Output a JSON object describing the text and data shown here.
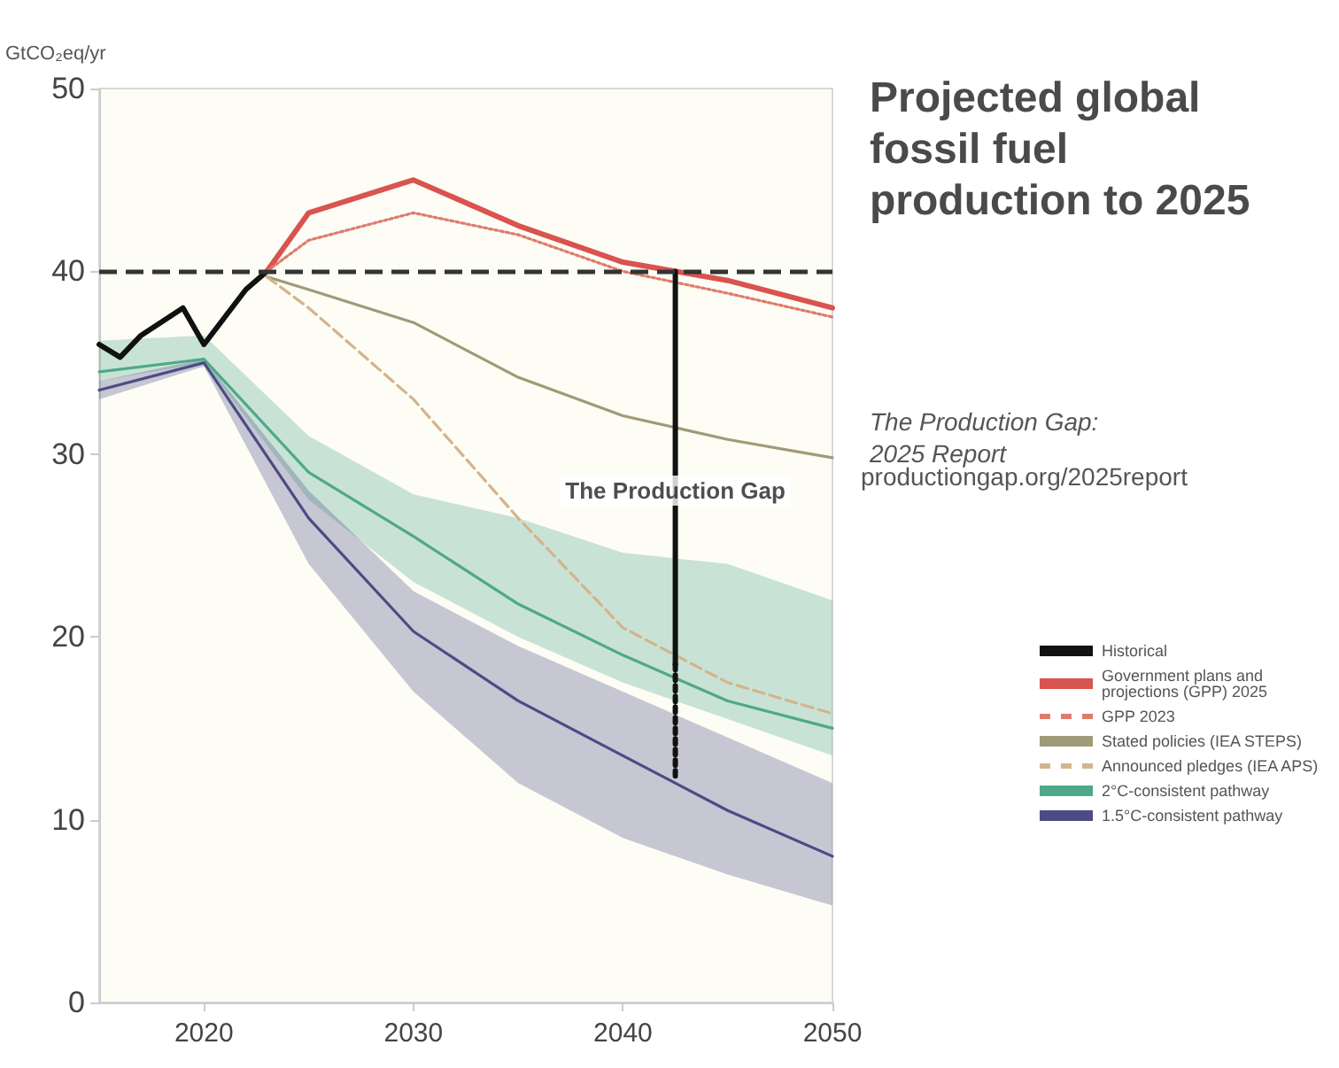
{
  "chart_data": {
    "type": "line",
    "title": "Projected global fossil fuel production to 2025",
    "subtitle": "The Production Gap: 2025 Report",
    "ylabel": "GtCO₂eq/yr",
    "annotations": [
      "productiongap.org/2025report",
      {
        "text": "The Production Gap",
        "x": 2042.5,
        "y": 28
      }
    ],
    "xlim": [
      2015,
      2050
    ],
    "xticks": [
      2020,
      2030,
      2040,
      2050
    ],
    "ylim": [
      0,
      50
    ],
    "yticks": [
      0,
      10,
      20,
      30,
      40,
      50
    ],
    "grid": false,
    "legend": "right",
    "marker": "none",
    "ref_lines": [
      {
        "axis": "y",
        "value": 40,
        "color": "#333333",
        "line_style": "dashed"
      }
    ],
    "series": [
      {
        "name": "Historical",
        "color": "#111111",
        "x": [
          2015,
          2016,
          2017,
          2019,
          2020,
          2021,
          2022,
          2023
        ],
        "values": [
          36,
          35.3,
          36.5,
          38,
          36,
          37.5,
          39,
          40
        ]
      },
      {
        "name": "Government plans and projections (GPP) 2025",
        "color": "#d9534f",
        "x": [
          2023,
          2025,
          2030,
          2035,
          2040,
          2045,
          2050
        ],
        "values": [
          40,
          43.2,
          45,
          42.5,
          40.5,
          39.5,
          38
        ]
      },
      {
        "name": "GPP 2023",
        "color": "#e07a6e",
        "line_style": "dotted",
        "x": [
          2023,
          2025,
          2030,
          2035,
          2040,
          2045,
          2050
        ],
        "values": [
          40,
          41.7,
          43.2,
          42,
          40,
          38.8,
          37.5
        ]
      },
      {
        "name": "Stated policies (IEA STEPS)",
        "color": "#a09a78",
        "x": [
          2023,
          2025,
          2030,
          2035,
          2040,
          2045,
          2050
        ],
        "values": [
          39.7,
          39,
          37.2,
          34.2,
          32.1,
          30.8,
          29.8
        ]
      },
      {
        "name": "Announced pledges (IEA APS)",
        "color": "#d4b48c",
        "line_style": "dashed",
        "x": [
          2023,
          2025,
          2030,
          2035,
          2040,
          2045,
          2050
        ],
        "values": [
          39.7,
          38,
          33,
          26.5,
          20.5,
          17.5,
          15.8
        ]
      },
      {
        "name": "2°C-consistent pathway",
        "color": "#4fa88a",
        "x": [
          2015,
          2020,
          2025,
          2030,
          2035,
          2040,
          2045,
          2050
        ],
        "values": [
          34.5,
          35.2,
          29,
          25.5,
          21.8,
          19,
          16.5,
          15
        ],
        "lower": [
          34,
          35,
          27.5,
          23,
          20,
          17.5,
          15.5,
          13.5
        ],
        "upper": [
          36.2,
          36.5,
          31,
          27.8,
          26.5,
          24.6,
          24,
          22
        ]
      },
      {
        "color": "#111111",
        "x": [
          2042.5,
          2042.5
        ],
        "values": [
          40,
          18.5
        ]
      },
      {
        "color": "#111111",
        "line_style": "dotted",
        "x": [
          2042.5,
          2042.5
        ],
        "values": [
          18.5,
          12.3
        ]
      },
      {
        "name": "1.5°C-consistent pathway",
        "color": "#4d4b85",
        "x": [
          2015,
          2020,
          2025,
          2030,
          2035,
          2040,
          2045,
          2050
        ],
        "values": [
          33.5,
          35,
          26.5,
          20.3,
          16.5,
          13.5,
          10.5,
          8
        ],
        "lower": [
          33,
          34.8,
          24,
          17,
          12,
          9,
          7,
          5.3
        ],
        "upper": [
          34,
          35.2,
          28,
          22.5,
          19.5,
          17,
          14.5,
          12
        ]
      }
    ]
  }
}
